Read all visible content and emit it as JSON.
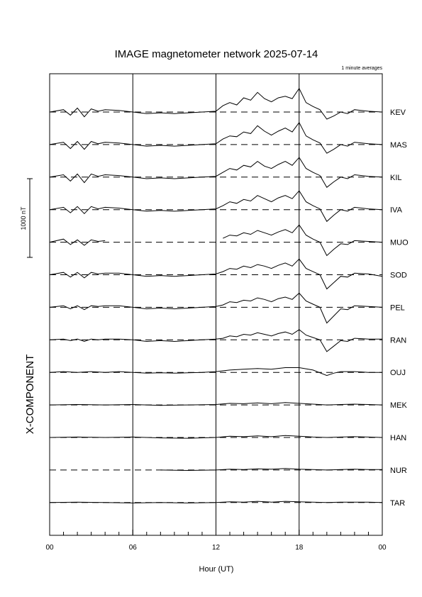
{
  "chart_data": {
    "type": "line",
    "title": "IMAGE magnetometer network 2025-07-14",
    "subtitle": "1 minute averages",
    "xlabel": "Hour (UT)",
    "component_label": "X-COMPONENT",
    "scale_bar_label": "1000 nT",
    "scale_bar_nT": 1000,
    "x_range_hours": [
      0,
      24
    ],
    "x_ticks": [
      "00",
      "06",
      "12",
      "18",
      "00"
    ],
    "x_tick_hours": [
      0,
      6,
      12,
      18,
      24
    ],
    "grid": "vertical lines at 06, 12, 18 UT",
    "baseline_style": "dashed",
    "stations": [
      "KEV",
      "MAS",
      "KIL",
      "IVA",
      "MUO",
      "SOD",
      "PEL",
      "RAN",
      "OUJ",
      "MEK",
      "HAN",
      "NUR",
      "TAR"
    ],
    "series": [
      {
        "name": "KEV",
        "x": [
          0,
          1,
          1.5,
          2,
          2.5,
          3,
          3.5,
          4,
          5,
          6,
          7,
          8,
          9,
          10,
          11,
          12,
          12.5,
          13,
          13.5,
          14,
          14.5,
          15,
          15.5,
          16,
          16.5,
          17,
          17.5,
          18,
          18.5,
          19,
          19.5,
          20,
          20.5,
          21,
          21.5,
          22,
          23,
          24
        ],
        "values": [
          0,
          30,
          -40,
          50,
          -60,
          40,
          10,
          30,
          20,
          0,
          -20,
          -10,
          -20,
          -10,
          0,
          10,
          80,
          120,
          90,
          180,
          150,
          250,
          170,
          130,
          180,
          200,
          170,
          300,
          120,
          70,
          30,
          -90,
          -50,
          0,
          -20,
          30,
          10,
          0
        ]
      },
      {
        "name": "MAS",
        "x": [
          0,
          1,
          1.5,
          2,
          2.5,
          3,
          3.5,
          4,
          5,
          6,
          7,
          8,
          9,
          10,
          11,
          12,
          12.5,
          13,
          13.5,
          14,
          14.5,
          15,
          15.5,
          16,
          16.5,
          17,
          17.5,
          18,
          18.5,
          19,
          19.5,
          20,
          20.5,
          21,
          21.5,
          22,
          23,
          24
        ],
        "values": [
          0,
          30,
          -50,
          40,
          -60,
          40,
          10,
          30,
          20,
          0,
          -20,
          -10,
          -20,
          -10,
          0,
          10,
          70,
          110,
          100,
          160,
          140,
          240,
          170,
          120,
          170,
          210,
          160,
          280,
          110,
          60,
          20,
          -110,
          -60,
          0,
          -20,
          30,
          10,
          0
        ]
      },
      {
        "name": "KIL",
        "x": [
          0,
          1,
          1.5,
          2,
          2.5,
          3,
          3.5,
          4,
          5,
          6,
          7,
          8,
          9,
          10,
          11,
          12,
          12.5,
          13,
          13.5,
          14,
          14.5,
          15,
          15.5,
          16,
          16.5,
          17,
          17.5,
          18,
          18.5,
          19,
          19.5,
          20,
          20.5,
          21,
          21.5,
          22,
          23,
          24
        ],
        "values": [
          0,
          30,
          -50,
          40,
          -70,
          40,
          10,
          30,
          20,
          0,
          -20,
          -10,
          -20,
          -10,
          0,
          10,
          60,
          110,
          90,
          150,
          130,
          200,
          140,
          110,
          160,
          200,
          150,
          250,
          110,
          60,
          20,
          -130,
          -60,
          0,
          -20,
          30,
          10,
          0
        ]
      },
      {
        "name": "IVA",
        "x": [
          0,
          1,
          1.5,
          2,
          2.5,
          3,
          3.5,
          4,
          5,
          6,
          7,
          8,
          9,
          10,
          11,
          12,
          12.5,
          13,
          13.5,
          14,
          14.5,
          15,
          15.5,
          16,
          16.5,
          17,
          17.5,
          18,
          18.5,
          19,
          19.5,
          20,
          20.5,
          21,
          21.5,
          22,
          23,
          24
        ],
        "values": [
          0,
          30,
          -40,
          40,
          -50,
          40,
          10,
          30,
          20,
          0,
          -20,
          -10,
          -20,
          -10,
          0,
          10,
          50,
          100,
          80,
          130,
          110,
          180,
          140,
          100,
          150,
          180,
          140,
          240,
          100,
          50,
          10,
          -150,
          -70,
          0,
          -20,
          30,
          10,
          0
        ]
      },
      {
        "name": "MUO",
        "x": [
          0,
          1,
          1.5,
          2,
          2.5,
          3,
          3.5,
          4,
          5,
          6,
          7,
          8,
          9,
          10,
          11,
          12,
          12.5,
          13,
          13.5,
          14,
          14.5,
          15,
          15.5,
          16,
          16.5,
          17,
          17.5,
          18,
          18.5,
          19,
          19.5,
          20,
          20.5,
          21,
          21.5,
          22,
          23,
          24
        ],
        "values": [
          0,
          40,
          -30,
          30,
          -40,
          30,
          10,
          20,
          null,
          null,
          null,
          null,
          null,
          null,
          null,
          null,
          50,
          90,
          80,
          120,
          100,
          150,
          120,
          90,
          130,
          160,
          120,
          220,
          90,
          40,
          0,
          -170,
          -90,
          -20,
          -30,
          20,
          10,
          0
        ]
      },
      {
        "name": "SOD",
        "x": [
          0,
          1,
          1.5,
          2,
          2.5,
          3,
          3.5,
          4,
          5,
          6,
          7,
          8,
          9,
          10,
          11,
          12,
          12.5,
          13,
          13.5,
          14,
          14.5,
          15,
          15.5,
          16,
          16.5,
          17,
          17.5,
          18,
          18.5,
          19,
          19.5,
          20,
          20.5,
          21,
          21.5,
          22,
          23,
          24
        ],
        "values": [
          0,
          30,
          -30,
          30,
          -40,
          30,
          10,
          20,
          20,
          0,
          -20,
          -10,
          -20,
          -10,
          0,
          10,
          40,
          80,
          70,
          110,
          90,
          130,
          110,
          80,
          120,
          150,
          110,
          200,
          80,
          40,
          0,
          -180,
          -100,
          -20,
          -30,
          20,
          10,
          -20
        ]
      },
      {
        "name": "PEL",
        "x": [
          0,
          1,
          1.5,
          2,
          2.5,
          3,
          3.5,
          4,
          5,
          6,
          7,
          8,
          9,
          10,
          11,
          12,
          12.5,
          13,
          13.5,
          14,
          14.5,
          15,
          15.5,
          16,
          16.5,
          17,
          17.5,
          18,
          18.5,
          19,
          19.5,
          20,
          20.5,
          21,
          21.5,
          22,
          23,
          24
        ],
        "values": [
          0,
          20,
          -20,
          20,
          -30,
          20,
          10,
          20,
          20,
          0,
          -20,
          -10,
          -20,
          -10,
          0,
          10,
          30,
          70,
          60,
          90,
          80,
          120,
          100,
          70,
          110,
          130,
          100,
          180,
          80,
          40,
          0,
          -200,
          -110,
          -20,
          -30,
          20,
          10,
          0
        ]
      },
      {
        "name": "RAN",
        "x": [
          0,
          1,
          1.5,
          2,
          2.5,
          3,
          3.5,
          4,
          5,
          6,
          7,
          8,
          9,
          10,
          11,
          12,
          12.5,
          13,
          13.5,
          14,
          14.5,
          15,
          15.5,
          16,
          16.5,
          17,
          17.5,
          18,
          18.5,
          19,
          19.5,
          20,
          20.5,
          21,
          21.5,
          22,
          23,
          24
        ],
        "values": [
          0,
          10,
          -10,
          10,
          -20,
          10,
          0,
          10,
          10,
          0,
          -20,
          -10,
          -20,
          -10,
          0,
          10,
          20,
          50,
          40,
          70,
          60,
          90,
          70,
          50,
          80,
          100,
          70,
          130,
          60,
          30,
          0,
          -150,
          -80,
          -10,
          -20,
          20,
          10,
          10
        ]
      },
      {
        "name": "OUJ",
        "x": [
          0,
          1,
          2,
          3,
          4,
          5,
          6,
          7,
          8,
          9,
          10,
          11,
          12,
          13,
          14,
          15,
          16,
          17,
          18,
          19,
          20,
          20.5,
          21,
          22,
          23,
          24
        ],
        "values": [
          0,
          10,
          0,
          10,
          0,
          10,
          0,
          -10,
          -5,
          -10,
          -5,
          0,
          10,
          30,
          40,
          50,
          40,
          60,
          60,
          30,
          -40,
          -10,
          10,
          10,
          0,
          0
        ]
      },
      {
        "name": "MEK",
        "x": [
          0,
          2,
          4,
          6,
          8,
          10,
          12,
          13,
          14,
          15,
          16,
          17,
          18,
          19,
          20,
          21,
          22,
          23,
          24
        ],
        "values": [
          0,
          5,
          0,
          5,
          -5,
          0,
          5,
          20,
          15,
          25,
          15,
          30,
          20,
          10,
          0,
          5,
          10,
          5,
          0
        ]
      },
      {
        "name": "HAN",
        "x": [
          0,
          2,
          4,
          6,
          8,
          10,
          12,
          13,
          14,
          15,
          16,
          17,
          18,
          19,
          20,
          21,
          22,
          23,
          24
        ],
        "values": [
          0,
          5,
          0,
          5,
          -5,
          -10,
          0,
          15,
          10,
          20,
          10,
          25,
          15,
          5,
          0,
          5,
          10,
          5,
          0
        ]
      },
      {
        "name": "NUR",
        "x": [
          0,
          2,
          4,
          6,
          8,
          10,
          12,
          13,
          14,
          15,
          16,
          17,
          18,
          19,
          20,
          21,
          22,
          23,
          24
        ],
        "values": [
          null,
          null,
          null,
          null,
          0,
          -5,
          0,
          10,
          5,
          15,
          10,
          20,
          10,
          5,
          0,
          5,
          10,
          5,
          5
        ]
      },
      {
        "name": "TAR",
        "x": [
          0,
          2,
          4,
          6,
          8,
          10,
          12,
          13,
          14,
          15,
          16,
          17,
          18,
          19,
          20,
          21,
          22,
          23,
          24
        ],
        "values": [
          0,
          5,
          0,
          -5,
          0,
          -5,
          0,
          10,
          5,
          15,
          5,
          15,
          10,
          5,
          0,
          5,
          5,
          5,
          0
        ]
      }
    ]
  }
}
